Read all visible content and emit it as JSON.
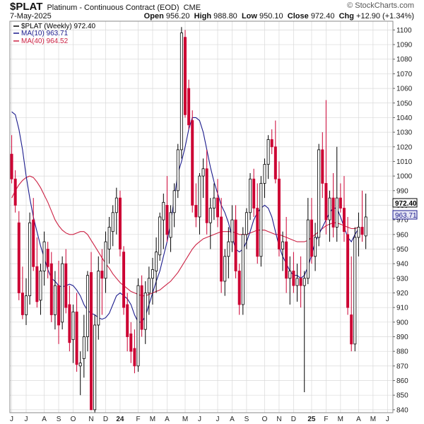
{
  "header": {
    "symbol": "$PLAT",
    "description": "Platinum - Continuous Contract (EOD)",
    "exchange": "CME",
    "date": "7-May-2025",
    "watermark": "© StockCharts.com",
    "ohlc": {
      "open_label": "Open",
      "open": "956.20",
      "high_label": "High",
      "high": "988.80",
      "low_label": "Low",
      "low": "950.10",
      "close_label": "Close",
      "close": "972.40",
      "chg_label": "Chg",
      "chg": "+12.90 (+1.34%)"
    }
  },
  "legend": {
    "price": "$PLAT (Weekly) 972.40",
    "ma10": "MA(10) 963.71",
    "ma40": "MA(40) 964.52"
  },
  "colors": {
    "up": "#000000",
    "down": "#cc0033",
    "ma10": "#1a1a8c",
    "ma40": "#cc2244",
    "grid": "#d9d9d9"
  },
  "chart_data": {
    "type": "candlestick",
    "timeframe": "weekly",
    "ylim": [
      838,
      1106
    ],
    "y_ticks": [
      840,
      850,
      860,
      870,
      880,
      890,
      900,
      910,
      920,
      930,
      940,
      950,
      960,
      970,
      980,
      990,
      1000,
      1010,
      1020,
      1030,
      1040,
      1050,
      1060,
      1070,
      1080,
      1090,
      1100
    ],
    "x_ticks": [
      {
        "i": 0,
        "label": "J"
      },
      {
        "i": 4,
        "label": "J"
      },
      {
        "i": 9,
        "label": "A"
      },
      {
        "i": 13,
        "label": "S"
      },
      {
        "i": 17,
        "label": "O"
      },
      {
        "i": 22,
        "label": "N"
      },
      {
        "i": 26,
        "label": "D"
      },
      {
        "i": 30,
        "label": "24"
      },
      {
        "i": 35,
        "label": "F"
      },
      {
        "i": 39,
        "label": "M"
      },
      {
        "i": 43,
        "label": "A"
      },
      {
        "i": 48,
        "label": "M"
      },
      {
        "i": 52,
        "label": "J"
      },
      {
        "i": 57,
        "label": "J"
      },
      {
        "i": 61,
        "label": "A"
      },
      {
        "i": 65,
        "label": "S"
      },
      {
        "i": 70,
        "label": "O"
      },
      {
        "i": 74,
        "label": "N"
      },
      {
        "i": 78,
        "label": "D"
      },
      {
        "i": 83,
        "label": "25"
      },
      {
        "i": 87,
        "label": "F"
      },
      {
        "i": 91,
        "label": "M"
      },
      {
        "i": 96,
        "label": "A"
      },
      {
        "i": 100,
        "label": "M"
      },
      {
        "i": 104,
        "label": "J"
      }
    ],
    "candles": [
      [
        1015,
        1028,
        995,
        998
      ],
      [
        998,
        1004,
        975,
        980
      ],
      [
        968,
        976,
        915,
        920
      ],
      [
        920,
        938,
        902,
        905
      ],
      [
        905,
        930,
        898,
        918
      ],
      [
        918,
        975,
        912,
        968
      ],
      [
        970,
        985,
        935,
        938
      ],
      [
        938,
        958,
        910,
        914
      ],
      [
        915,
        940,
        905,
        935
      ],
      [
        935,
        962,
        925,
        955
      ],
      [
        950,
        955,
        930,
        938
      ],
      [
        940,
        948,
        900,
        905
      ],
      [
        905,
        935,
        895,
        925
      ],
      [
        925,
        942,
        885,
        898
      ],
      [
        900,
        945,
        895,
        940
      ],
      [
        940,
        950,
        906,
        910
      ],
      [
        912,
        925,
        880,
        886
      ],
      [
        888,
        912,
        872,
        907
      ],
      [
        907,
        920,
        866,
        871
      ],
      [
        870,
        880,
        850,
        872
      ],
      [
        875,
        905,
        862,
        890
      ],
      [
        890,
        935,
        880,
        932
      ],
      [
        934,
        948,
        842,
        840
      ],
      [
        840,
        905,
        838,
        898
      ],
      [
        898,
        945,
        888,
        935
      ],
      [
        935,
        950,
        905,
        930
      ],
      [
        930,
        962,
        920,
        955
      ],
      [
        950,
        972,
        940,
        965
      ],
      [
        962,
        980,
        952,
        975
      ],
      [
        975,
        992,
        960,
        985
      ],
      [
        985,
        990,
        945,
        950
      ],
      [
        948,
        952,
        905,
        910
      ],
      [
        912,
        920,
        880,
        890
      ],
      [
        892,
        900,
        872,
        880
      ],
      [
        882,
        895,
        865,
        870
      ],
      [
        870,
        930,
        866,
        925
      ],
      [
        925,
        932,
        890,
        895
      ],
      [
        895,
        928,
        885,
        920
      ],
      [
        920,
        938,
        905,
        930
      ],
      [
        930,
        944,
        912,
        936
      ],
      [
        935,
        958,
        920,
        948
      ],
      [
        946,
        975,
        942,
        972
      ],
      [
        970,
        988,
        950,
        982
      ],
      [
        980,
        1000,
        955,
        960
      ],
      [
        958,
        980,
        948,
        975
      ],
      [
        975,
        995,
        965,
        990
      ],
      [
        990,
        1022,
        985,
        1018
      ],
      [
        1018,
        1102,
        1012,
        1098
      ],
      [
        1095,
        1100,
        1040,
        1042
      ],
      [
        1060,
        1066,
        1032,
        1035
      ],
      [
        1038,
        1045,
        975,
        980
      ],
      [
        980,
        995,
        965,
        972
      ],
      [
        972,
        1002,
        960,
        1000
      ],
      [
        1000,
        1012,
        985,
        1005
      ],
      [
        1005,
        1018,
        960,
        968
      ],
      [
        968,
        985,
        950,
        978
      ],
      [
        978,
        995,
        970,
        985
      ],
      [
        985,
        998,
        965,
        972
      ],
      [
        972,
        985,
        920,
        928
      ],
      [
        928,
        950,
        918,
        945
      ],
      [
        945,
        965,
        930,
        955
      ],
      [
        955,
        980,
        948,
        970
      ],
      [
        970,
        980,
        930,
        935
      ],
      [
        935,
        940,
        905,
        912
      ],
      [
        912,
        965,
        905,
        960
      ],
      [
        960,
        978,
        950,
        975
      ],
      [
        975,
        1002,
        970,
        998
      ],
      [
        998,
        1005,
        972,
        978
      ],
      [
        978,
        995,
        940,
        945
      ],
      [
        945,
        1000,
        938,
        995
      ],
      [
        995,
        1012,
        985,
        1008
      ],
      [
        1008,
        1028,
        998,
        1025
      ],
      [
        1025,
        1032,
        1015,
        1020
      ],
      [
        1020,
        1038,
        995,
        998
      ],
      [
        998,
        1010,
        945,
        950
      ],
      [
        950,
        962,
        935,
        955
      ],
      [
        955,
        972,
        920,
        930
      ],
      [
        930,
        945,
        912,
        935
      ],
      [
        935,
        948,
        920,
        925
      ],
      [
        925,
        940,
        914,
        930
      ],
      [
        930,
        945,
        910,
        925
      ],
      [
        925,
        935,
        852,
        930
      ],
      [
        930,
        985,
        926,
        970
      ],
      [
        970,
        985,
        940,
        945
      ],
      [
        945,
        968,
        935,
        958
      ],
      [
        958,
        1022,
        952,
        1018
      ],
      [
        1018,
        1030,
        985,
        995
      ],
      [
        995,
        1052,
        960,
        970
      ],
      [
        970,
        990,
        955,
        985
      ],
      [
        985,
        1002,
        958,
        965
      ],
      [
        965,
        1020,
        955,
        985
      ],
      [
        985,
        995,
        975,
        978
      ],
      [
        978,
        1000,
        955,
        962
      ],
      [
        960,
        972,
        905,
        910
      ],
      [
        905,
        945,
        880,
        885
      ],
      [
        885,
        965,
        880,
        958
      ],
      [
        958,
        975,
        945,
        965
      ],
      [
        965,
        990,
        955,
        960
      ],
      [
        959,
        988,
        950,
        972
      ]
    ],
    "ma10": [
      1044,
      1042,
      1032,
      1018,
      1000,
      985,
      972,
      962,
      952,
      944,
      936,
      930,
      928,
      925,
      924,
      925,
      926,
      925,
      922,
      918,
      912,
      908,
      906,
      905,
      903,
      902,
      903,
      906,
      912,
      918,
      920,
      918,
      916,
      912,
      905,
      900,
      900,
      904,
      912,
      920,
      928,
      935,
      945,
      955,
      968,
      985,
      1002,
      1010,
      1020,
      1032,
      1040,
      1040,
      1038,
      1030,
      1018,
      1006,
      996,
      988,
      980,
      975,
      968,
      958,
      950,
      948,
      950,
      955,
      962,
      970,
      975,
      978,
      980,
      978,
      972,
      962,
      952,
      945,
      940,
      935,
      932,
      932,
      930,
      932,
      938,
      946,
      955,
      960,
      965,
      970,
      975,
      978,
      978,
      972,
      965,
      958,
      955,
      960,
      964
    ],
    "ma40": [
      985,
      990,
      994,
      997,
      999,
      1000,
      999,
      996,
      992,
      987,
      982,
      976,
      970,
      966,
      963,
      961,
      960,
      960,
      961,
      962,
      962,
      960,
      956,
      952,
      948,
      944,
      940,
      937,
      933,
      930,
      927,
      925,
      923,
      921,
      920,
      919,
      918,
      918,
      919,
      920,
      921,
      922,
      924,
      926,
      928,
      931,
      934,
      938,
      942,
      946,
      950,
      953,
      955,
      957,
      958,
      959,
      960,
      961,
      962,
      962,
      962,
      962,
      961,
      960,
      960,
      960,
      961,
      962,
      963,
      963,
      963,
      962,
      961,
      960,
      960,
      959,
      958,
      957,
      956,
      955,
      955,
      955,
      956,
      958,
      960,
      962,
      964,
      966,
      967,
      968,
      968,
      967,
      966,
      965,
      964,
      964,
      965
    ]
  }
}
